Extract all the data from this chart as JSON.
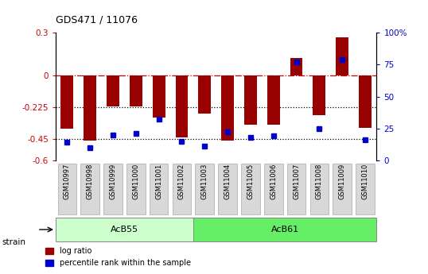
{
  "title": "GDS471 / 11076",
  "samples": [
    "GSM10997",
    "GSM10998",
    "GSM10999",
    "GSM11000",
    "GSM11001",
    "GSM11002",
    "GSM11003",
    "GSM11004",
    "GSM11005",
    "GSM11006",
    "GSM11007",
    "GSM11008",
    "GSM11009",
    "GSM11010"
  ],
  "log_ratio": [
    -0.38,
    -0.46,
    -0.22,
    -0.22,
    -0.3,
    -0.44,
    -0.27,
    -0.46,
    -0.35,
    -0.35,
    0.12,
    -0.28,
    0.27,
    -0.37
  ],
  "percentile_rank": [
    14,
    10,
    20,
    21,
    32,
    15,
    11,
    22,
    18,
    19,
    77,
    25,
    79,
    16
  ],
  "strain_labels": [
    "AcB55",
    "AcB61"
  ],
  "strain_ranges": [
    [
      0,
      5
    ],
    [
      6,
      13
    ]
  ],
  "strain_colors": [
    "#ccffcc",
    "#66ee66"
  ],
  "bar_color": "#990000",
  "dot_color": "#0000cc",
  "ylim_left": [
    -0.6,
    0.3
  ],
  "ylim_right": [
    0,
    100
  ],
  "yticks_left": [
    0.3,
    0.0,
    -0.225,
    -0.45,
    -0.6
  ],
  "yticks_right": [
    100,
    75,
    50,
    25,
    0
  ],
  "background_color": "#ffffff"
}
